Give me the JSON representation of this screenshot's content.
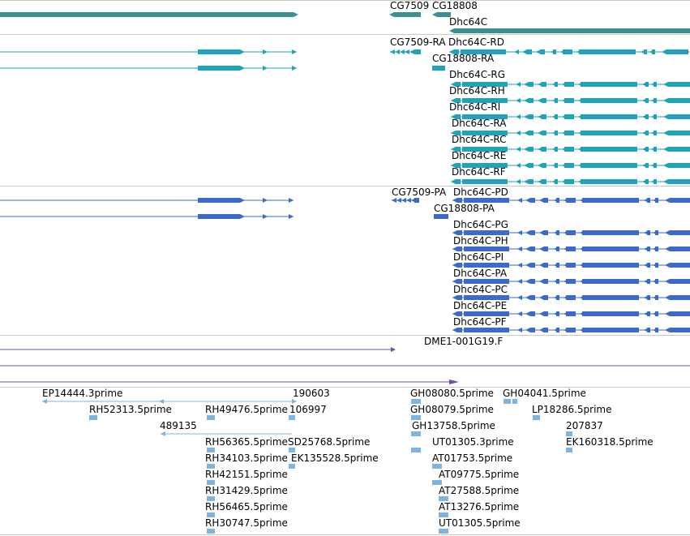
{
  "colors": {
    "gene": "#3c8f8f",
    "transcript": "#1ba5bd",
    "protein": "#3c6ac9",
    "clone": "#6d4fa8",
    "est": "#7eb4dd",
    "separator": "#c8c8c8"
  },
  "gene_track": {
    "labels": [
      "CG7509",
      "CG18808",
      "Dhc64C"
    ]
  },
  "transcript_track": {
    "labels": [
      "CG7509-RA",
      "Dhc64C-RD",
      "CG18808-RA",
      "Dhc64C-RG",
      "Dhc64C-RH",
      "Dhc64C-RI",
      "Dhc64C-RA",
      "Dhc64C-RC",
      "Dhc64C-RE",
      "Dhc64C-RF"
    ]
  },
  "protein_track": {
    "labels": [
      "CG7509-PA",
      "Dhc64C-PD",
      "CG18808-PA",
      "Dhc64C-PG",
      "Dhc64C-PH",
      "Dhc64C-PI",
      "Dhc64C-PA",
      "Dhc64C-PC",
      "Dhc64C-PE",
      "Dhc64C-PF"
    ]
  },
  "clone_track": {
    "labels": [
      "DME1-001G19.F"
    ]
  },
  "est_track": {
    "labels": [
      "EP14444.3prime",
      "190603",
      "GH08080.5prime",
      "GH04041.5prime",
      "RH52313.5prime",
      "RH49476.5prime",
      "106997",
      "GH08079.5prime",
      "LP18286.5prime",
      "489135",
      "GH13758.5prime",
      "207837",
      "RH56365.5prime",
      "SD25768.5prime",
      "UT01305.3prime",
      "EK160318.5prime",
      "RH34103.5prime",
      "EK135528.5prime",
      "AT01753.5prime",
      "RH42151.5prime",
      "AT09775.5prime",
      "RH31429.5prime",
      "AT27588.5prime",
      "RH56465.5prime",
      "AT13276.5prime",
      "RH30747.5prime",
      "UT01305.5prime"
    ]
  }
}
